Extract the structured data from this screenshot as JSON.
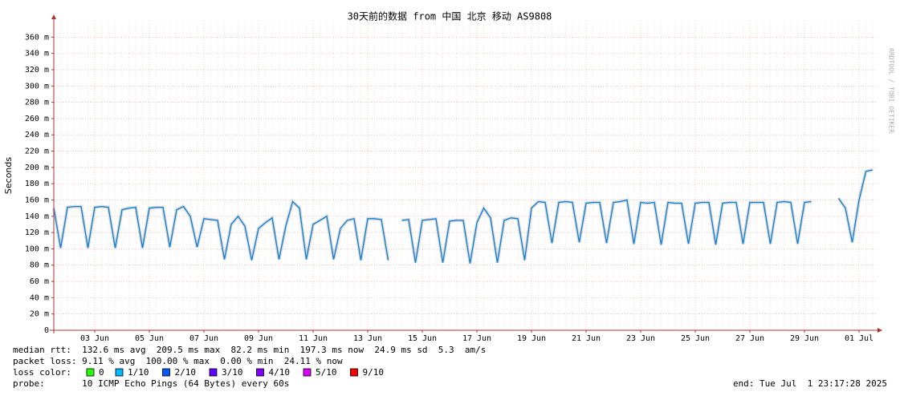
{
  "chart_data": {
    "type": "line",
    "title": "30天前的数据 from 中国 北京 移动 AS9808",
    "y_label": "Seconds",
    "side_text": "RRDTOOL / TOBI OETIKER",
    "categories": [
      null,
      null,
      null,
      null,
      null,
      null,
      "03 Jun",
      null,
      null,
      null,
      null,
      null,
      null,
      null,
      "05 Jun",
      null,
      null,
      null,
      null,
      null,
      null,
      null,
      "07 Jun",
      null,
      null,
      null,
      null,
      null,
      null,
      null,
      "09 Jun",
      null,
      null,
      null,
      null,
      null,
      null,
      null,
      "11 Jun",
      null,
      null,
      null,
      null,
      null,
      null,
      null,
      "13 Jun",
      null,
      null,
      null,
      null,
      null,
      null,
      null,
      "15 Jun",
      null,
      null,
      null,
      null,
      null,
      null,
      null,
      "17 Jun",
      null,
      null,
      null,
      null,
      null,
      null,
      null,
      "19 Jun",
      null,
      null,
      null,
      null,
      null,
      null,
      null,
      "21 Jun",
      null,
      null,
      null,
      null,
      null,
      null,
      null,
      "23 Jun",
      null,
      null,
      null,
      null,
      null,
      null,
      null,
      "25 Jun",
      null,
      null,
      null,
      null,
      null,
      null,
      null,
      "27 Jun",
      null,
      null,
      null,
      null,
      null,
      null,
      null,
      "29 Jun",
      null,
      null,
      null,
      null,
      null,
      null,
      null,
      "01 Jul",
      null,
      null
    ],
    "series": [
      {
        "name": "median rtt",
        "color": "#0a7fd0",
        "values": [
          0.15,
          0.101,
          0.151,
          0.152,
          0.152,
          0.101,
          0.151,
          0.152,
          0.151,
          0.101,
          0.148,
          0.15,
          0.151,
          0.101,
          0.15,
          0.151,
          0.151,
          0.102,
          0.148,
          0.152,
          0.14,
          0.102,
          0.137,
          0.136,
          0.135,
          0.087,
          0.13,
          0.14,
          0.128,
          0.086,
          0.125,
          0.132,
          0.138,
          0.087,
          0.128,
          0.158,
          0.15,
          0.087,
          0.13,
          0.135,
          0.14,
          0.087,
          0.125,
          0.135,
          0.137,
          0.086,
          0.137,
          0.137,
          0.136,
          0.086,
          null,
          0.135,
          0.136,
          0.083,
          0.135,
          0.136,
          0.137,
          0.083,
          0.134,
          0.135,
          0.135,
          0.082,
          0.132,
          0.15,
          0.138,
          0.083,
          0.135,
          0.138,
          0.137,
          0.086,
          0.15,
          0.158,
          0.157,
          0.107,
          0.157,
          0.158,
          0.157,
          0.108,
          0.156,
          0.157,
          0.157,
          0.107,
          0.157,
          0.158,
          0.16,
          0.106,
          0.157,
          0.156,
          0.157,
          0.105,
          0.157,
          0.156,
          0.156,
          0.106,
          0.156,
          0.157,
          0.157,
          0.105,
          0.156,
          0.157,
          0.157,
          0.106,
          0.157,
          0.157,
          0.157,
          0.106,
          0.157,
          0.158,
          0.157,
          0.106,
          0.157,
          0.158,
          null,
          null,
          null,
          0.162,
          0.15,
          0.108,
          0.16,
          0.195,
          0.197
        ]
      }
    ],
    "ylim": [
      0,
      0.38
    ],
    "yticks": [
      0,
      {
        "value": 0.02,
        "label": "20 m"
      },
      {
        "value": 0.04,
        "label": "40 m"
      },
      {
        "value": 0.06,
        "label": "60 m"
      },
      {
        "value": 0.08,
        "label": "80 m"
      },
      {
        "value": 0.1,
        "label": "100 m"
      },
      {
        "value": 0.12,
        "label": "120 m"
      },
      {
        "value": 0.14,
        "label": "140 m"
      },
      {
        "value": 0.16,
        "label": "160 m"
      },
      {
        "value": 0.18,
        "label": "180 m"
      },
      {
        "value": 0.2,
        "label": "200 m"
      },
      {
        "value": 0.22,
        "label": "220 m"
      },
      {
        "value": 0.24,
        "label": "240 m"
      },
      {
        "value": 0.26,
        "label": "260 m"
      },
      {
        "value": 0.28,
        "label": "280 m"
      },
      {
        "value": 0.3,
        "label": "300 m"
      },
      {
        "value": 0.32,
        "label": "320 m"
      },
      {
        "value": 0.34,
        "label": "340 m"
      },
      {
        "value": 0.36,
        "label": "360 m"
      }
    ],
    "grid": true,
    "stats_lines": [
      "median rtt:  132.6 ms avg  209.5 ms max  82.2 ms min  197.3 ms now  24.9 ms sd  5.3  am/s",
      "packet loss: 9.11 % avg  100.00 % max  0.00 % min  24.11 % now"
    ],
    "loss_legend_label": "loss color:",
    "loss_colors": [
      {
        "label": "0",
        "color": "#26ff00"
      },
      {
        "label": "1/10",
        "color": "#00b8ff"
      },
      {
        "label": "2/10",
        "color": "#0059ff"
      },
      {
        "label": "3/10",
        "color": "#5e00ff"
      },
      {
        "label": "4/10",
        "color": "#7e00ff"
      },
      {
        "label": "5/10",
        "color": "#dd00ff"
      },
      {
        "label": "9/10",
        "color": "#ff0000"
      }
    ],
    "probe_line": "probe:       10 ICMP Echo Pings (64 Bytes) every 60s",
    "end_line": "end: Tue Jul  1 23:17:28 2025"
  }
}
